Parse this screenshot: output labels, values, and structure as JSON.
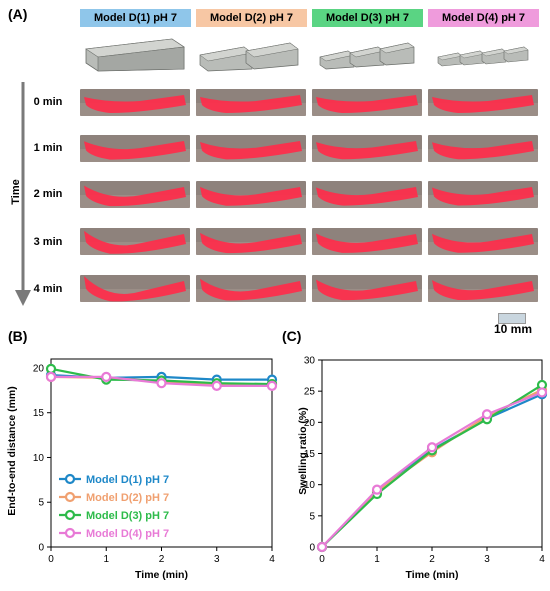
{
  "panel_labels": {
    "a": "(A)",
    "b": "(B)",
    "c": "(C)"
  },
  "models": [
    {
      "name": "Model D(1) pH 7",
      "color": "#8fc6ea",
      "segments": 1
    },
    {
      "name": "Model D(2) pH 7",
      "color": "#f7c7a4",
      "segments": 2
    },
    {
      "name": "Model D(3) pH 7",
      "color": "#5ad483",
      "segments": 3
    },
    {
      "name": "Model D(4) pH 7",
      "color": "#ef9bdc",
      "segments": 4
    }
  ],
  "time_axis_label": "Time",
  "time_points": [
    "0 min",
    "1 min",
    "2 min",
    "3 min",
    "4 min"
  ],
  "scale_bar_label": "10 mm",
  "chart_data": [
    {
      "type": "line",
      "ylabel": "End-to-end distance (mm)",
      "xlabel": "Time (min)",
      "x": [
        0,
        1,
        2,
        3,
        4
      ],
      "xlim": [
        0,
        4
      ],
      "ylim": [
        0,
        21
      ],
      "yticks": [
        0,
        5,
        10,
        15,
        20
      ],
      "xticks": [
        0,
        1,
        2,
        3,
        4
      ],
      "legend": "lower-left",
      "series": [
        {
          "name": "Model D(1) pH 7",
          "color": "#1e88c8",
          "values": [
            19.2,
            18.9,
            19.0,
            18.7,
            18.7
          ]
        },
        {
          "name": "Model D(2) pH 7",
          "color": "#f0a070",
          "values": [
            19.0,
            18.9,
            18.5,
            18.2,
            18.2
          ]
        },
        {
          "name": "Model D(3) pH 7",
          "color": "#2dbb4a",
          "values": [
            19.9,
            18.7,
            18.6,
            18.3,
            18.2
          ]
        },
        {
          "name": "Model D(4) pH 7",
          "color": "#e87ad6",
          "values": [
            19.0,
            19.0,
            18.3,
            18.0,
            18.0
          ]
        }
      ]
    },
    {
      "type": "line",
      "ylabel": "Swelling ratio (%)",
      "xlabel": "Time (min)",
      "x": [
        0,
        1,
        2,
        3,
        4
      ],
      "xlim": [
        0,
        4
      ],
      "ylim": [
        0,
        30
      ],
      "yticks": [
        0,
        5,
        10,
        15,
        20,
        25,
        30
      ],
      "xticks": [
        0,
        1,
        2,
        3,
        4
      ],
      "series": [
        {
          "name": "Model D(1) pH 7",
          "color": "#1e88c8",
          "values": [
            0,
            8.8,
            15.6,
            20.6,
            24.5
          ]
        },
        {
          "name": "Model D(2) pH 7",
          "color": "#f0a070",
          "values": [
            0,
            8.9,
            15.2,
            21.0,
            25.2
          ]
        },
        {
          "name": "Model D(3) pH 7",
          "color": "#2dbb4a",
          "values": [
            0,
            8.5,
            15.5,
            20.5,
            26.0
          ]
        },
        {
          "name": "Model D(4) pH 7",
          "color": "#e87ad6",
          "values": [
            0,
            9.2,
            16.0,
            21.3,
            24.8
          ]
        }
      ]
    }
  ]
}
